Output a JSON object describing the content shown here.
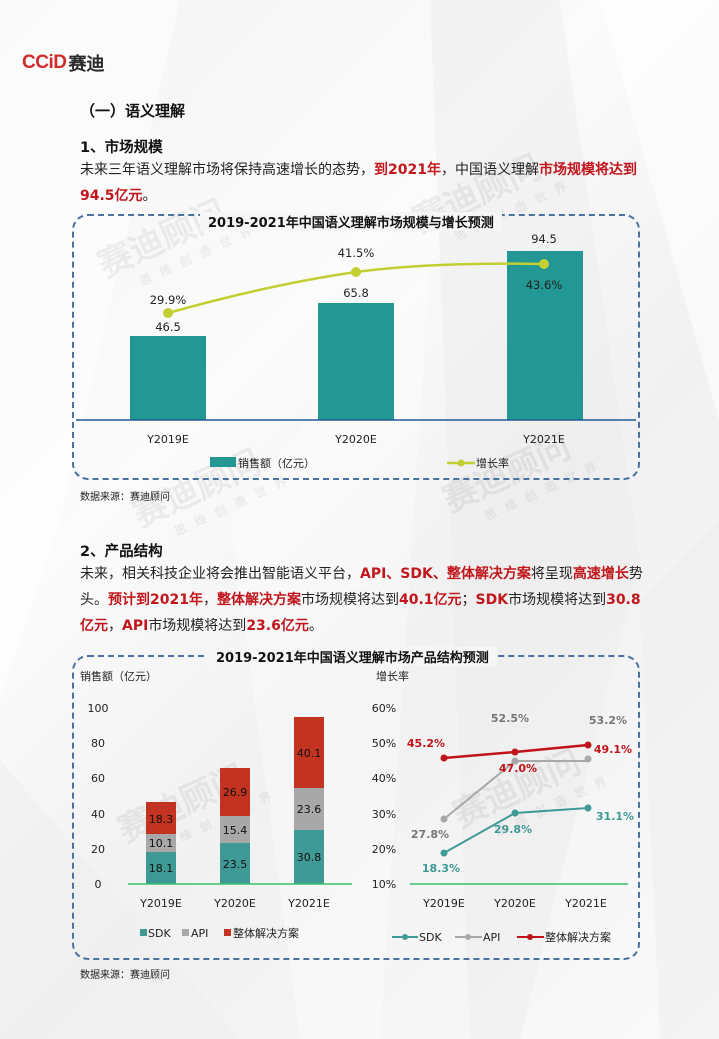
{
  "logo": {
    "brand": "CCiD",
    "name_cn": "赛迪"
  },
  "section": {
    "title": "（一）语义理解"
  },
  "subsection1": {
    "title": "1、市场规模",
    "paragraph": [
      {
        "t": "未来三年语义理解市场将保持高速增长的态势，",
        "hl": false
      },
      {
        "t": "到2021年",
        "hl": true
      },
      {
        "t": "，中国语义理解",
        "hl": false
      },
      {
        "t": "市场规模将达到 94.5亿元",
        "hl": true
      },
      {
        "t": "。",
        "hl": false
      }
    ]
  },
  "subsection2": {
    "title": "2、产品结构",
    "paragraph": [
      {
        "t": "未来，相关科技企业将会推出智能语义平台，",
        "hl": false
      },
      {
        "t": "API、SDK、整体解决方案",
        "hl": true
      },
      {
        "t": "将呈现",
        "hl": false
      },
      {
        "t": "高速增长",
        "hl": true
      },
      {
        "t": "势头。",
        "hl": false
      },
      {
        "t": "预计到2021年",
        "hl": true
      },
      {
        "t": "，",
        "hl": false
      },
      {
        "t": "整体解决方案",
        "hl": true
      },
      {
        "t": "市场规模将达到",
        "hl": false
      },
      {
        "t": "40.1亿元",
        "hl": true
      },
      {
        "t": "；",
        "hl": false
      },
      {
        "t": "SDK",
        "hl": true
      },
      {
        "t": "市场规模将达到",
        "hl": false
      },
      {
        "t": "30.8亿元",
        "hl": true
      },
      {
        "t": "，",
        "hl": false
      },
      {
        "t": "API",
        "hl": true
      },
      {
        "t": "市场规模将达到",
        "hl": false
      },
      {
        "t": "23.6亿元",
        "hl": true
      },
      {
        "t": "。",
        "hl": false
      }
    ]
  },
  "source_label": "数据来源：赛迪顾问",
  "watermark": {
    "big": "赛迪顾问",
    "small": "思维创造世界"
  },
  "colors": {
    "teal": "#239793",
    "lime": "#c2cf32",
    "sdk": "#3f9a96",
    "api": "#a8a8a8",
    "solution": "#c23321",
    "solution_line": "#c0141a",
    "highlight": "#c0161c",
    "dash": "#4a72a0",
    "axis_blue": "#1f5a96",
    "axis_green": "#3cbf6a"
  },
  "chart_data": [
    {
      "type": "bar+line",
      "title": "2019-2021年中国语义理解市场规模与增长预测",
      "categories": [
        "Y2019E",
        "Y2020E",
        "Y2021E"
      ],
      "series": [
        {
          "name": "销售额（亿元）",
          "type": "bar",
          "values": [
            46.5,
            65.8,
            94.5
          ],
          "labels": [
            "46.5",
            "65.8",
            "94.5"
          ]
        },
        {
          "name": "增长率",
          "type": "line",
          "values": [
            29.9,
            41.5,
            43.6
          ],
          "labels": [
            "29.9%",
            "41.5%",
            "43.6%"
          ]
        }
      ],
      "legend": [
        "销售额（亿元）",
        "增长率"
      ],
      "legend_position": "bottom",
      "grid": false
    },
    {
      "type": "stacked-bar",
      "title": "2019-2021年中国语义理解市场产品结构预测",
      "ylabel": "销售额（亿元）",
      "yticks": [
        "100",
        "80",
        "60",
        "40",
        "20",
        "0"
      ],
      "ylim": [
        0,
        100
      ],
      "categories": [
        "Y2019E",
        "Y2020E",
        "Y2021E"
      ],
      "series": [
        {
          "name": "SDK",
          "values": [
            18.1,
            23.5,
            30.8
          ],
          "labels": [
            "18.1",
            "23.5",
            "30.8"
          ]
        },
        {
          "name": "API",
          "values": [
            10.1,
            15.4,
            23.6
          ],
          "labels": [
            "10.1",
            "15.4",
            "23.6"
          ]
        },
        {
          "name": "整体解决方案",
          "values": [
            18.3,
            26.9,
            40.1
          ],
          "labels": [
            "18.3",
            "26.9",
            "40.1"
          ]
        }
      ],
      "legend": [
        "SDK",
        "API",
        "整体解决方案"
      ],
      "legend_position": "bottom",
      "grid": false
    },
    {
      "type": "line",
      "title": "2019-2021年中国语义理解市场产品结构预测",
      "ylabel": "增长率",
      "yticks": [
        "60%",
        "50%",
        "40%",
        "30%",
        "20%",
        "10%"
      ],
      "ylim": [
        10,
        60
      ],
      "categories": [
        "Y2019E",
        "Y2020E",
        "Y2021E"
      ],
      "series": [
        {
          "name": "SDK",
          "values": [
            18.3,
            29.8,
            31.1
          ],
          "labels": [
            "18.3%",
            "29.8%",
            "31.1%"
          ]
        },
        {
          "name": "API",
          "values": [
            27.8,
            52.5,
            53.2
          ],
          "labels": [
            "27.8%",
            "52.5%",
            "53.2%"
          ]
        },
        {
          "name": "整体解决方案",
          "values": [
            45.2,
            47.0,
            49.1
          ],
          "labels": [
            "45.2%",
            "47.0%",
            "49.1%"
          ]
        }
      ],
      "legend": [
        "SDK",
        "API",
        "整体解决方案"
      ],
      "legend_position": "bottom",
      "grid": false
    }
  ]
}
